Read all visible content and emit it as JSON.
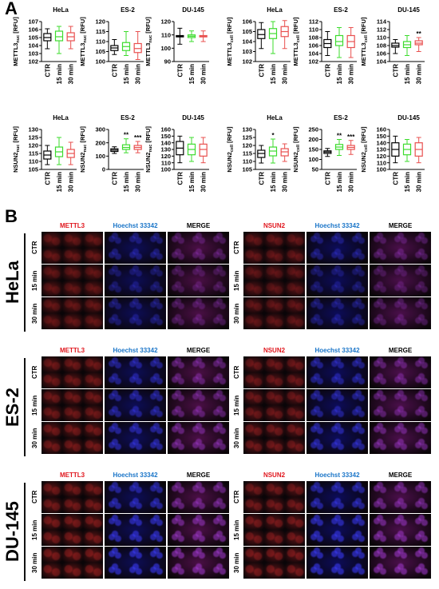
{
  "panel_a_letter": "A",
  "panel_b_letter": "B",
  "x_categories": [
    "CTR",
    "15 min",
    "30 min"
  ],
  "group_colors": [
    "#000000",
    "#3ddc2e",
    "#e8504f"
  ],
  "chart_data": [
    {
      "type": "box",
      "title": "HeLa",
      "ylabel_main": "METTL3",
      "ylabel_sub": "nuc",
      "ylabel_unit": " [RFU]",
      "ylim": [
        102,
        107
      ],
      "yticks": [
        102,
        103,
        104,
        105,
        106,
        107
      ],
      "boxes": [
        {
          "min": 103.6,
          "q1": 104.6,
          "median": 105.0,
          "q3": 105.5,
          "max": 106.1
        },
        {
          "min": 103.0,
          "q1": 104.6,
          "median": 105.1,
          "q3": 105.8,
          "max": 106.4
        },
        {
          "min": 103.6,
          "q1": 104.6,
          "median": 105.1,
          "q3": 105.6,
          "max": 106.4
        }
      ],
      "sig": [
        "",
        "",
        ""
      ]
    },
    {
      "type": "box",
      "title": "ES-2",
      "ylabel_main": "METTL3",
      "ylabel_sub": "nuc",
      "ylabel_unit": " [RFU]",
      "ylim": [
        100,
        120
      ],
      "yticks": [
        100,
        105,
        110,
        115,
        120
      ],
      "boxes": [
        {
          "min": 103.5,
          "q1": 105.5,
          "median": 106.8,
          "q3": 108.0,
          "max": 111.0
        },
        {
          "min": 103.0,
          "q1": 105.5,
          "median": 107.5,
          "q3": 109.5,
          "max": 115.0
        },
        {
          "min": 101.0,
          "q1": 104.5,
          "median": 106.5,
          "q3": 109.0,
          "max": 115.0
        }
      ],
      "sig": [
        "",
        "",
        ""
      ]
    },
    {
      "type": "box",
      "title": "DU-145",
      "ylabel_main": "METTL3",
      "ylabel_sub": "nuc",
      "ylabel_unit": " [RFU]",
      "ylim": [
        90,
        120
      ],
      "yticks": [
        90,
        100,
        110,
        120
      ],
      "boxes": [
        {
          "min": 103,
          "q1": 108.5,
          "median": 109.0,
          "q3": 109.5,
          "max": 115
        },
        {
          "min": 105,
          "q1": 108.0,
          "median": 109.0,
          "q3": 110.0,
          "max": 113
        },
        {
          "min": 105,
          "q1": 108.5,
          "median": 109.0,
          "q3": 109.5,
          "max": 113
        }
      ],
      "sig": [
        "",
        "",
        ""
      ]
    },
    {
      "type": "box",
      "title": "HeLa",
      "ylabel_main": "METTL3",
      "ylabel_sub": "cell",
      "ylabel_unit": " [RFU]",
      "ylim": [
        102,
        106
      ],
      "yticks": [
        102,
        103,
        104,
        105,
        106
      ],
      "boxes": [
        {
          "min": 103.3,
          "q1": 104.3,
          "median": 104.7,
          "q3": 105.2,
          "max": 105.9
        },
        {
          "min": 102.8,
          "q1": 104.3,
          "median": 104.8,
          "q3": 105.3,
          "max": 106.0
        },
        {
          "min": 103.3,
          "q1": 104.5,
          "median": 105.0,
          "q3": 105.5,
          "max": 106.1
        }
      ],
      "sig": [
        "",
        "",
        ""
      ]
    },
    {
      "type": "box",
      "title": "ES-2",
      "ylabel_main": "METTL3",
      "ylabel_sub": "cell",
      "ylabel_unit": " [RFU]",
      "ylim": [
        102,
        112
      ],
      "yticks": [
        102,
        104,
        106,
        108,
        110,
        112
      ],
      "boxes": [
        {
          "min": 103.5,
          "q1": 105.5,
          "median": 106.5,
          "q3": 107.5,
          "max": 109.5
        },
        {
          "min": 103.0,
          "q1": 106.0,
          "median": 107.0,
          "q3": 108.5,
          "max": 110.5
        },
        {
          "min": 103.0,
          "q1": 105.5,
          "median": 107.0,
          "q3": 108.5,
          "max": 110.5
        }
      ],
      "sig": [
        "",
        "",
        ""
      ]
    },
    {
      "type": "box",
      "title": "DU-145",
      "ylabel_main": "METTL3",
      "ylabel_sub": "cell",
      "ylabel_unit": " [RFU]",
      "ylim": [
        104,
        114
      ],
      "yticks": [
        104,
        106,
        108,
        110,
        112,
        114
      ],
      "boxes": [
        {
          "min": 106.0,
          "q1": 107.6,
          "median": 108.0,
          "q3": 108.6,
          "max": 109.5
        },
        {
          "min": 105.5,
          "q1": 107.5,
          "median": 108.2,
          "q3": 109.0,
          "max": 110.5
        },
        {
          "min": 106.5,
          "q1": 108.2,
          "median": 108.6,
          "q3": 109.2,
          "max": 110.0
        }
      ],
      "sig": [
        "",
        "",
        "**"
      ]
    },
    {
      "type": "box",
      "title": "HeLa",
      "ylabel_main": "NSUN2",
      "ylabel_sub": "nuc",
      "ylabel_unit": " [RFU]",
      "ylim": [
        105,
        130
      ],
      "yticks": [
        105,
        110,
        115,
        120,
        125,
        130
      ],
      "boxes": [
        {
          "min": 108,
          "q1": 111.5,
          "median": 114.0,
          "q3": 116.5,
          "max": 120
        },
        {
          "min": 108,
          "q1": 113.0,
          "median": 116.0,
          "q3": 119.0,
          "max": 125
        },
        {
          "min": 108,
          "q1": 112.5,
          "median": 115.0,
          "q3": 117.5,
          "max": 122
        }
      ],
      "sig": [
        "",
        "",
        ""
      ]
    },
    {
      "type": "box",
      "title": "ES-2",
      "ylabel_main": "NSUN2",
      "ylabel_sub": "nuc",
      "ylabel_unit": " [RFU]",
      "ylim": [
        0,
        300
      ],
      "yticks": [
        0,
        100,
        200,
        300
      ],
      "boxes": [
        {
          "min": 120,
          "q1": 135,
          "median": 145,
          "q3": 155,
          "max": 170
        },
        {
          "min": 125,
          "q1": 150,
          "median": 165,
          "q3": 185,
          "max": 230
        },
        {
          "min": 125,
          "q1": 150,
          "median": 165,
          "q3": 180,
          "max": 210
        }
      ],
      "sig": [
        "",
        "**",
        "***"
      ]
    },
    {
      "type": "box",
      "title": "DU-145",
      "ylabel_main": "NSUN2",
      "ylabel_sub": "nuc",
      "ylabel_unit": " [RFU]",
      "ylim": [
        100,
        160
      ],
      "yticks": [
        100,
        110,
        120,
        130,
        140,
        150,
        160
      ],
      "boxes": [
        {
          "min": 110,
          "q1": 122,
          "median": 132,
          "q3": 142,
          "max": 150
        },
        {
          "min": 112,
          "q1": 122,
          "median": 130,
          "q3": 138,
          "max": 148
        },
        {
          "min": 110,
          "q1": 120,
          "median": 130,
          "q3": 138,
          "max": 148
        }
      ],
      "sig": [
        "",
        "",
        ""
      ]
    },
    {
      "type": "box",
      "title": "HeLa",
      "ylabel_main": "NSUN2",
      "ylabel_sub": "cell",
      "ylabel_unit": " [RFU]",
      "ylim": [
        105,
        130
      ],
      "yticks": [
        105,
        110,
        115,
        120,
        125,
        130
      ],
      "boxes": [
        {
          "min": 109,
          "q1": 112.5,
          "median": 115.0,
          "q3": 117.0,
          "max": 120
        },
        {
          "min": 109,
          "q1": 113.5,
          "median": 116.5,
          "q3": 119.0,
          "max": 124
        },
        {
          "min": 110,
          "q1": 113.5,
          "median": 116.0,
          "q3": 118.0,
          "max": 121
        }
      ],
      "sig": [
        "",
        "*",
        ""
      ]
    },
    {
      "type": "box",
      "title": "ES-2",
      "ylabel_main": "NSUN2",
      "ylabel_sub": "cell",
      "ylabel_unit": " [RFU]",
      "ylim": [
        50,
        250
      ],
      "yticks": [
        50,
        100,
        150,
        200,
        250
      ],
      "boxes": [
        {
          "min": 115,
          "q1": 130,
          "median": 137,
          "q3": 143,
          "max": 155
        },
        {
          "min": 120,
          "q1": 150,
          "median": 162,
          "q3": 175,
          "max": 200
        },
        {
          "min": 125,
          "q1": 150,
          "median": 160,
          "q3": 170,
          "max": 195
        }
      ],
      "sig": [
        "",
        "**",
        "***"
      ]
    },
    {
      "type": "box",
      "title": "DU-145",
      "ylabel_main": "NSUN2",
      "ylabel_sub": "cell",
      "ylabel_unit": " [RFU]",
      "ylim": [
        100,
        160
      ],
      "yticks": [
        100,
        110,
        120,
        130,
        140,
        150,
        160
      ],
      "boxes": [
        {
          "min": 110,
          "q1": 120,
          "median": 130,
          "q3": 140,
          "max": 150
        },
        {
          "min": 112,
          "q1": 122,
          "median": 130,
          "q3": 138,
          "max": 145
        },
        {
          "min": 110,
          "q1": 120,
          "median": 130,
          "q3": 140,
          "max": 148
        }
      ],
      "sig": [
        "",
        "",
        ""
      ]
    }
  ],
  "microscopy": {
    "cell_lines": [
      "HeLa",
      "ES-2",
      "DU-145"
    ],
    "conditions": [
      "CTR",
      "15 min",
      "30 min"
    ],
    "left_channels": [
      "METTL3",
      "Hoechst  33342",
      "MERGE"
    ],
    "right_channels": [
      "NSUN2",
      "Hoechst  33342",
      "MERGE"
    ],
    "channel_colors": [
      "#e0161d",
      "#1a75c8",
      "#000000"
    ]
  }
}
